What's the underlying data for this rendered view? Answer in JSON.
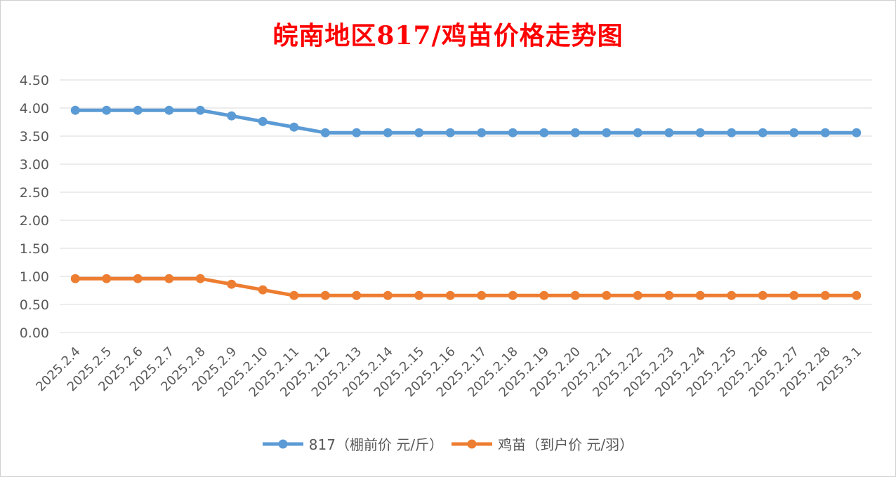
{
  "chart_data": {
    "type": "line",
    "title": "皖南地区817/鸡苗价格走势图",
    "xlabel": "",
    "ylabel": "",
    "categories": [
      "2025.2.4",
      "2025.2.5",
      "2025.2.6",
      "2025.2.7",
      "2025.2.8",
      "2025.2.9",
      "2025.2.10",
      "2025.2.11",
      "2025.2.12",
      "2025.2.13",
      "2025.2.14",
      "2025.2.15",
      "2025.2.16",
      "2025.2.17",
      "2025.2.18",
      "2025.2.19",
      "2025.2.20",
      "2025.2.21",
      "2025.2.22",
      "2025.2.23",
      "2025.2.24",
      "2025.2.25",
      "2025.2.26",
      "2025.2.27",
      "2025.2.28",
      "2025.3.1"
    ],
    "y_ticks": [
      "0.00",
      "0.50",
      "1.00",
      "1.50",
      "2.00",
      "2.50",
      "3.00",
      "3.50",
      "4.00",
      "4.50"
    ],
    "ylim": [
      0,
      4.5
    ],
    "grid": true,
    "legend_position": "bottom",
    "series": [
      {
        "name": "817（棚前价 元/斤）",
        "color": "#5b9bd5",
        "values": [
          3.96,
          3.96,
          3.96,
          3.96,
          3.96,
          3.86,
          3.76,
          3.66,
          3.56,
          3.56,
          3.56,
          3.56,
          3.56,
          3.56,
          3.56,
          3.56,
          3.56,
          3.56,
          3.56,
          3.56,
          3.56,
          3.56,
          3.56,
          3.56,
          3.56,
          3.56
        ]
      },
      {
        "name": "鸡苗（到户价 元/羽）",
        "color": "#ed7d31",
        "values": [
          0.96,
          0.96,
          0.96,
          0.96,
          0.96,
          0.86,
          0.76,
          0.66,
          0.66,
          0.66,
          0.66,
          0.66,
          0.66,
          0.66,
          0.66,
          0.66,
          0.66,
          0.66,
          0.66,
          0.66,
          0.66,
          0.66,
          0.66,
          0.66,
          0.66,
          0.66
        ]
      }
    ]
  }
}
